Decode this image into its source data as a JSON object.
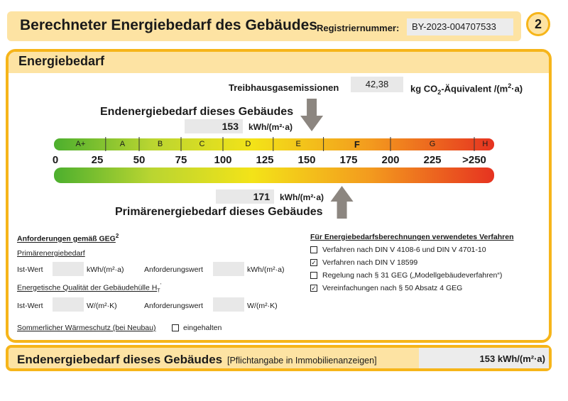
{
  "header": {
    "title": "Berechneter Energiebedarf des Gebäudes",
    "registration_label": "Registriernummer:",
    "registration_number": "BY-2023-004707533",
    "page_number": "2"
  },
  "section": {
    "title": "Energiebedarf"
  },
  "emissions": {
    "label": "Treibhausgasemissionen",
    "value": "42,38",
    "unit": "kg CO₂-Äquivalent /(m²·a)"
  },
  "final_energy": {
    "heading": "Endenergiebedarf dieses Gebäudes",
    "value": "153",
    "value_number": 153,
    "unit": "kWh/(m²·a)"
  },
  "primary_energy": {
    "heading": "Primärenergiebedarf dieses Gebäudes",
    "value": "171",
    "value_number": 171,
    "unit": "kWh/(m²·a)"
  },
  "scale": {
    "classes": [
      "A+",
      "A",
      "B",
      "C",
      "D",
      "E",
      "F",
      "G",
      "H"
    ],
    "highlighted_class": "F",
    "ticks": [
      "0",
      "25",
      "50",
      "75",
      "100",
      "125",
      "150",
      "175",
      "200",
      "225",
      ">250"
    ],
    "colors": {
      "green": "#4caf2e",
      "yellow_green": "#b9d531",
      "yellow": "#f3e318",
      "orange": "#f39a1e",
      "red": "#e63320"
    }
  },
  "requirements": {
    "heading": "Anforderungen gemäß GEG",
    "heading_sup": "2",
    "primary_sub": "Primärenergiebedarf",
    "ist_label": "Ist-Wert",
    "unit_primary": "kWh/(m²·a)",
    "req_label": "Anforderungswert",
    "envelope_label": "Energetische Qualität der Gebäudehülle H",
    "envelope_sub": "T",
    "envelope_sup": "'",
    "unit_envelope": "W/(m²·K)",
    "summer_label": "Sommerlicher Wärmeschutz (bei Neubau)",
    "summer_check_label": "eingehalten"
  },
  "methods": {
    "heading": "Für Energiebedarfsberechnungen verwendetes Verfahren",
    "items": [
      {
        "label": "Verfahren nach DIN V 4108-6 und DIN V 4701-10",
        "checked": false
      },
      {
        "label": "Verfahren nach DIN V 18599",
        "checked": true
      },
      {
        "label": "Regelung nach § 31 GEG („Modellgebäudeverfahren“)",
        "checked": false
      },
      {
        "label": "Vereinfachungen nach § 50 Absatz 4 GEG",
        "checked": true
      }
    ]
  },
  "footer": {
    "title": "Endenergiebedarf dieses Gebäudes",
    "note": "[Pflichtangabe in Immobilienanzeigen]",
    "value": "153 kWh/(m²·a)"
  }
}
